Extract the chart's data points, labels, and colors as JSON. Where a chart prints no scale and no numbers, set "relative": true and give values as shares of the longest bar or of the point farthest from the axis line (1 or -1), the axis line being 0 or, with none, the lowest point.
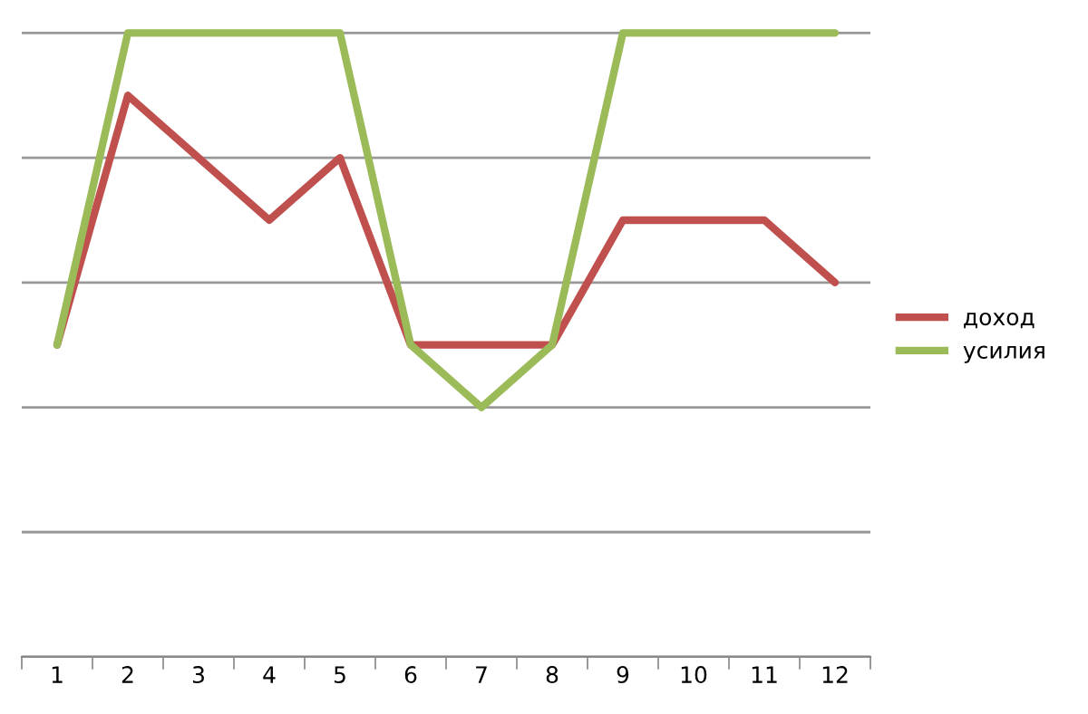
{
  "chart_data": {
    "type": "line",
    "relative": true,
    "categories": [
      "1",
      "2",
      "3",
      "4",
      "5",
      "6",
      "7",
      "8",
      "9",
      "10",
      "11",
      "12"
    ],
    "series": [
      {
        "name": "доход",
        "color": "#c0504d",
        "values": [
          0.5,
          0.9,
          0.8,
          0.7,
          0.8,
          0.5,
          0.5,
          0.5,
          0.7,
          0.7,
          0.7,
          0.6
        ]
      },
      {
        "name": "усилия",
        "color": "#9bbb59",
        "values": [
          0.5,
          1,
          1,
          1,
          1,
          0.5,
          0.4,
          0.5,
          1,
          1,
          1,
          1
        ]
      }
    ],
    "grid": "y",
    "legend": "right",
    "marker": "none",
    "line_style": "solid"
  }
}
